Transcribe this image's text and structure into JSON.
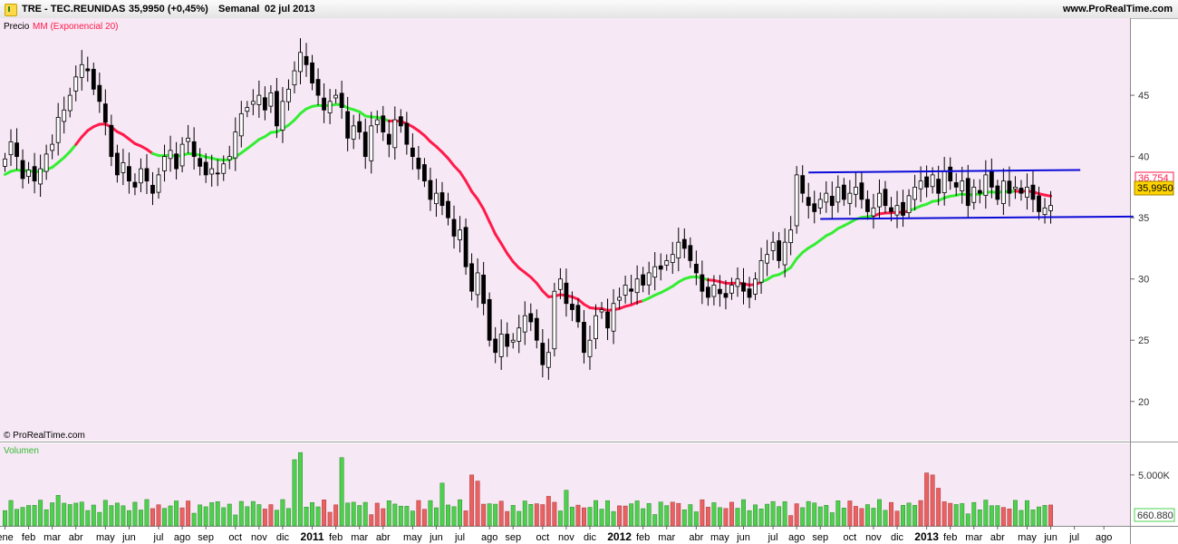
{
  "header": {
    "ticker": "TRE - TEC.REUNIDAS",
    "price_change": "35,9950 (+0,45%)",
    "period": "Semanal",
    "date": "02 jul 2013",
    "site": "www.ProRealTime.com"
  },
  "price_panel": {
    "label_precio": "Precio",
    "label_mm": "MM (Exponencial 20)",
    "copyright": "© ProRealTime.com",
    "ema_tag": "36,754",
    "price_tag": "35,9950"
  },
  "volume_panel": {
    "label": "Volumen",
    "last_tag": "660.880"
  },
  "colors": {
    "background": "#f7e8f5",
    "up_candle": "#ffffff",
    "down_candle": "#000000",
    "ema_up": "#33ee33",
    "ema_down": "#ff1a4a",
    "channel": "#0a0ad8",
    "vol_up": "#4ed04e",
    "vol_down": "#e86262"
  },
  "chart_data": {
    "type": "candlestick",
    "period": "weekly",
    "x_labels": [
      {
        "w": 0,
        "label": "ene"
      },
      {
        "w": 4,
        "label": "feb"
      },
      {
        "w": 8,
        "label": "mar"
      },
      {
        "w": 12,
        "label": "abr"
      },
      {
        "w": 17,
        "label": "may"
      },
      {
        "w": 21,
        "label": "jun"
      },
      {
        "w": 26,
        "label": "jul"
      },
      {
        "w": 30,
        "label": "ago"
      },
      {
        "w": 34,
        "label": "sep"
      },
      {
        "w": 39,
        "label": "oct"
      },
      {
        "w": 43,
        "label": "nov"
      },
      {
        "w": 47,
        "label": "dic"
      },
      {
        "w": 52,
        "label": "2011",
        "bold": true
      },
      {
        "w": 56,
        "label": "feb"
      },
      {
        "w": 60,
        "label": "mar"
      },
      {
        "w": 64,
        "label": "abr"
      },
      {
        "w": 69,
        "label": "may"
      },
      {
        "w": 73,
        "label": "jun"
      },
      {
        "w": 77,
        "label": "jul"
      },
      {
        "w": 82,
        "label": "ago"
      },
      {
        "w": 86,
        "label": "sep"
      },
      {
        "w": 91,
        "label": "oct"
      },
      {
        "w": 95,
        "label": "nov"
      },
      {
        "w": 99,
        "label": "dic"
      },
      {
        "w": 104,
        "label": "2012",
        "bold": true
      },
      {
        "w": 108,
        "label": "feb"
      },
      {
        "w": 112,
        "label": "mar"
      },
      {
        "w": 117,
        "label": "abr"
      },
      {
        "w": 121,
        "label": "may"
      },
      {
        "w": 125,
        "label": "jun"
      },
      {
        "w": 130,
        "label": "jul"
      },
      {
        "w": 134,
        "label": "ago"
      },
      {
        "w": 138,
        "label": "sep"
      },
      {
        "w": 143,
        "label": "oct"
      },
      {
        "w": 147,
        "label": "nov"
      },
      {
        "w": 151,
        "label": "dic"
      },
      {
        "w": 156,
        "label": "2013",
        "bold": true
      },
      {
        "w": 160,
        "label": "feb"
      },
      {
        "w": 164,
        "label": "mar"
      },
      {
        "w": 168,
        "label": "abr"
      },
      {
        "w": 173,
        "label": "may"
      },
      {
        "w": 177,
        "label": "jun"
      },
      {
        "w": 181,
        "label": "jul"
      },
      {
        "w": 186,
        "label": "ago"
      }
    ],
    "y_ticks": [
      20,
      25,
      30,
      35,
      40,
      45
    ],
    "ylim": [
      16.8,
      51.3
    ],
    "volume_tick": {
      "value": 5000000,
      "label": "5.000K"
    },
    "volume_max": 7300000,
    "closes": [
      39.8,
      41.2,
      40.0,
      38.2,
      38.9,
      38.0,
      39.0,
      40.2,
      41.0,
      43.2,
      43.8,
      45.0,
      46.5,
      47.5,
      47.0,
      45.5,
      44.5,
      42.8,
      40.0,
      38.5,
      39.5,
      38.0,
      37.5,
      39.0,
      38.0,
      37.0,
      38.5,
      40.0,
      40.5,
      39.0,
      41.0,
      41.5,
      40.0,
      39.2,
      38.5,
      39.0,
      38.6,
      39.4,
      40.0,
      42.0,
      43.5,
      44.0,
      44.5,
      45.0,
      43.8,
      45.2,
      42.5,
      44.5,
      45.5,
      47.0,
      48.5,
      47.5,
      46.0,
      45.0,
      43.8,
      44.5,
      45.0,
      44.0,
      41.5,
      42.5,
      42.0,
      40.0,
      42.5,
      43.0,
      42.0,
      41.0,
      43.0,
      42.5,
      41.0,
      40.0,
      39.0,
      38.0,
      36.5,
      37.0,
      36.0,
      35.0,
      33.5,
      34.0,
      31.0,
      29.0,
      30.5,
      28.0,
      25.0,
      24.0,
      25.5,
      24.5,
      25.0,
      26.0,
      27.0,
      26.5,
      25.0,
      23.0,
      24.0,
      29.0,
      30.0,
      28.0,
      27.5,
      26.5,
      24.0,
      25.0,
      27.0,
      27.5,
      26.0,
      28.0,
      28.5,
      29.5,
      29.0,
      30.0,
      29.5,
      30.5,
      31.0,
      30.8,
      31.5,
      32.0,
      33.0,
      32.5,
      31.5,
      30.5,
      29.0,
      28.5,
      29.5,
      28.8,
      28.5,
      29.5,
      30.0,
      29.0,
      28.5,
      30.0,
      31.5,
      32.0,
      33.0,
      31.5,
      33.0,
      34.0,
      38.5,
      37.0,
      36.0,
      35.5,
      36.5,
      37.0,
      36.0,
      37.5,
      36.5,
      37.0,
      37.5,
      36.5,
      35.5,
      35.8,
      37.0,
      36.0,
      35.5,
      36.0,
      35.2,
      36.8,
      37.5,
      38.0,
      37.5,
      38.5,
      37.0,
      38.8,
      38.0,
      37.5,
      38.0,
      36.0,
      37.5,
      37.0,
      38.5,
      37.5,
      36.5,
      38.0,
      37.0,
      37.5,
      37.0,
      37.5,
      36.5,
      35.5,
      35.8,
      36.0
    ],
    "ema_20_last": 36.754,
    "ema_segments_red": [
      [
        13,
        25
      ],
      [
        66,
        108
      ],
      [
        120,
        128
      ],
      [
        148,
        153
      ],
      [
        172,
        183
      ]
    ],
    "channel_lines": [
      {
        "from": {
          "w": 136,
          "price": 38.7
        },
        "to": {
          "w": 182,
          "price": 38.9
        }
      },
      {
        "from": {
          "w": 138,
          "price": 34.9
        },
        "to": {
          "w": 191,
          "price": 35.1
        }
      }
    ],
    "volume_down_weeks": [
      25,
      26,
      30,
      31,
      44,
      45,
      54,
      55,
      56,
      62,
      63,
      64,
      70,
      71,
      78,
      79,
      80,
      81,
      84,
      85,
      90,
      91,
      92,
      93,
      97,
      98,
      104,
      105,
      113,
      114,
      118,
      119,
      122,
      123,
      133,
      134,
      143,
      144,
      145,
      150,
      151,
      155,
      156,
      157,
      158,
      159,
      160,
      169,
      170,
      177,
      178,
      179,
      180,
      181,
      182
    ],
    "volume_spikes": [
      {
        "w": 9,
        "value": 3000000
      },
      {
        "w": 49,
        "value": 6500000
      },
      {
        "w": 50,
        "value": 7200000
      },
      {
        "w": 57,
        "value": 6700000
      },
      {
        "w": 74,
        "value": 4200000
      },
      {
        "w": 79,
        "value": 5000000
      },
      {
        "w": 80,
        "value": 4400000
      },
      {
        "w": 95,
        "value": 3500000
      },
      {
        "w": 156,
        "value": 5200000
      },
      {
        "w": 157,
        "value": 5000000
      },
      {
        "w": 158,
        "value": 3700000
      },
      {
        "w": 92,
        "value": 2900000
      }
    ]
  }
}
